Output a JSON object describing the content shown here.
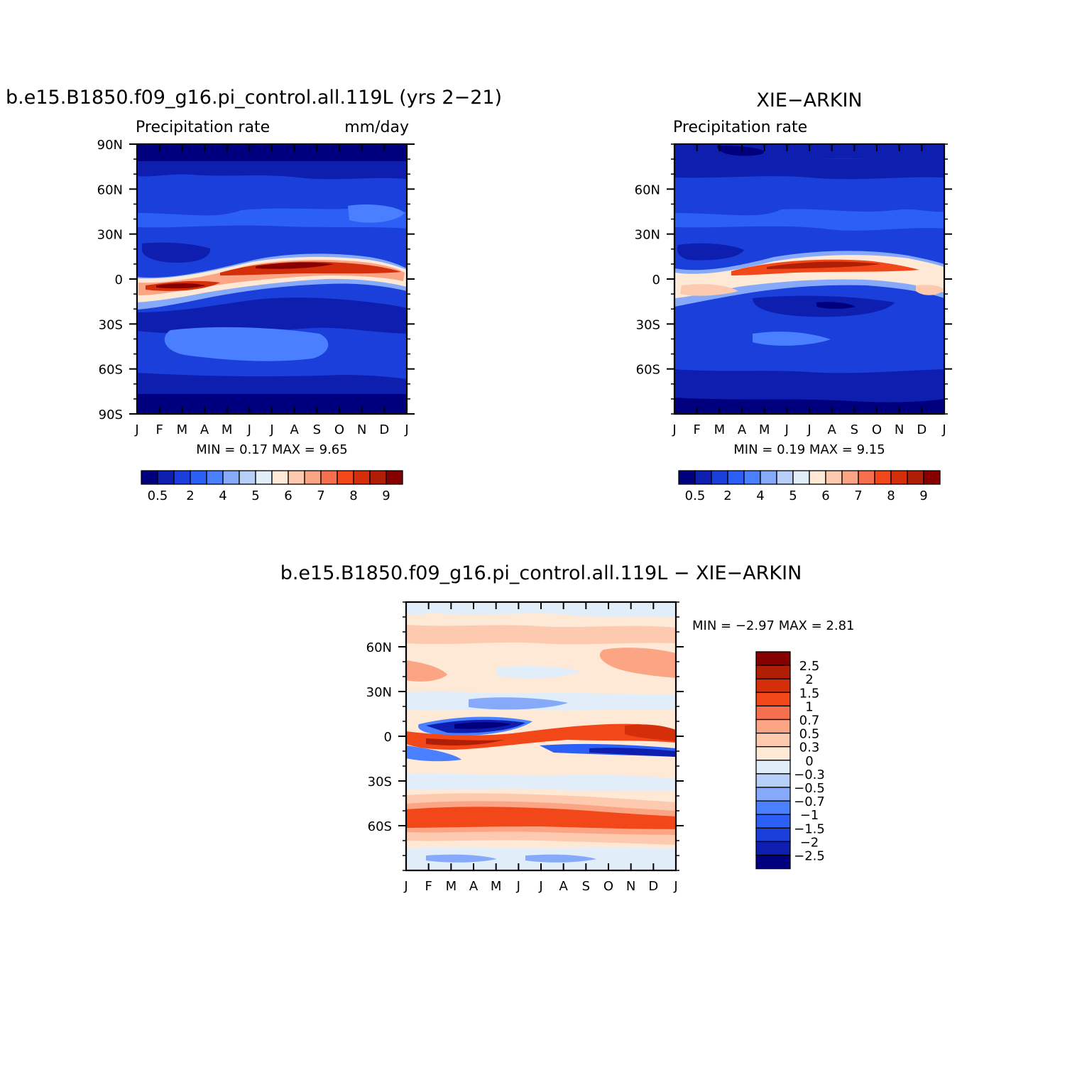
{
  "figure": {
    "panel_a": {
      "title": "b.e15.B1850.f09_g16.pi_control.all.119L (yrs 2−21)",
      "left_label": "Precipitation  rate",
      "right_label": "mm/day",
      "minmax_label": "MIN =     0.17  MAX =      9.65"
    },
    "panel_b": {
      "title": "XIE−ARKIN",
      "left_label": "Precipitation  rate",
      "right_label": "",
      "minmax_label": "MIN =     0.19  MAX =      9.15"
    },
    "panel_c": {
      "title": "b.e15.B1850.f09_g16.pi_control.all.119L  −  XIE−ARKIN",
      "minmax_label": "MIN =    −2.97  MAX =      2.81"
    }
  },
  "chart_data": [
    {
      "type": "heatmap",
      "title": "b.e15.B1850.f09_g16.pi_control.all.119L (yrs 2−21)",
      "subtitle": "Precipitation  rate",
      "units": "mm/day",
      "x_ticks": [
        "J",
        "F",
        "M",
        "A",
        "M",
        "J",
        "J",
        "A",
        "S",
        "O",
        "N",
        "D",
        "J"
      ],
      "y_ticks": [
        "90N",
        "60N",
        "30N",
        "0",
        "30S",
        "60S",
        "90S"
      ],
      "min": 0.17,
      "max": 9.65,
      "colorbar_labels": [
        "0.5",
        "2",
        "4",
        "5",
        "6",
        "7",
        "8",
        "9"
      ],
      "colorbar_colors": [
        "#00007f",
        "#0e1fb0",
        "#1a3fdb",
        "#2b5ff5",
        "#4a80ff",
        "#86aaf9",
        "#b8cff7",
        "#e2edfa",
        "#fde9d6",
        "#fdcab0",
        "#fba585",
        "#f66f4e",
        "#f24719",
        "#d42e0a",
        "#b01e05",
        "#860000"
      ],
      "itcz_peak": "July–August near 5N",
      "grid": false
    },
    {
      "type": "heatmap",
      "title": "XIE−ARKIN",
      "subtitle": "Precipitation  rate",
      "x_ticks": [
        "J",
        "F",
        "M",
        "A",
        "M",
        "J",
        "J",
        "A",
        "S",
        "O",
        "N",
        "D",
        "J"
      ],
      "y_ticks": [
        "60N",
        "30N",
        "0",
        "30S",
        "60S"
      ],
      "min": 0.19,
      "max": 9.15,
      "colorbar_labels": [
        "0.5",
        "2",
        "4",
        "5",
        "6",
        "7",
        "8",
        "9"
      ],
      "grid": false
    },
    {
      "type": "heatmap",
      "title": "b.e15.B1850.f09_g16.pi_control.all.119L  −  XIE−ARKIN",
      "x_ticks": [
        "J",
        "F",
        "M",
        "A",
        "M",
        "J",
        "J",
        "A",
        "S",
        "O",
        "N",
        "D",
        "J"
      ],
      "y_ticks": [
        "60N",
        "30N",
        "0",
        "30S",
        "60S"
      ],
      "min": -2.97,
      "max": 2.81,
      "colorbar_labels": [
        "2.5",
        "2",
        "1.5",
        "1",
        "0.7",
        "0.5",
        "0.3",
        "0",
        "−0.3",
        "−0.5",
        "−0.7",
        "−1",
        "−1.5",
        "−2",
        "−2.5"
      ],
      "colorbar_colors": [
        "#860000",
        "#b01e05",
        "#d42e0a",
        "#f24719",
        "#f66f4e",
        "#fba585",
        "#fdcab0",
        "#fde9d6",
        "#e2edfa",
        "#b8cff7",
        "#86aaf9",
        "#4a80ff",
        "#2b5ff5",
        "#1a3fdb",
        "#0e1fb0",
        "#00007f"
      ],
      "grid": false
    }
  ]
}
